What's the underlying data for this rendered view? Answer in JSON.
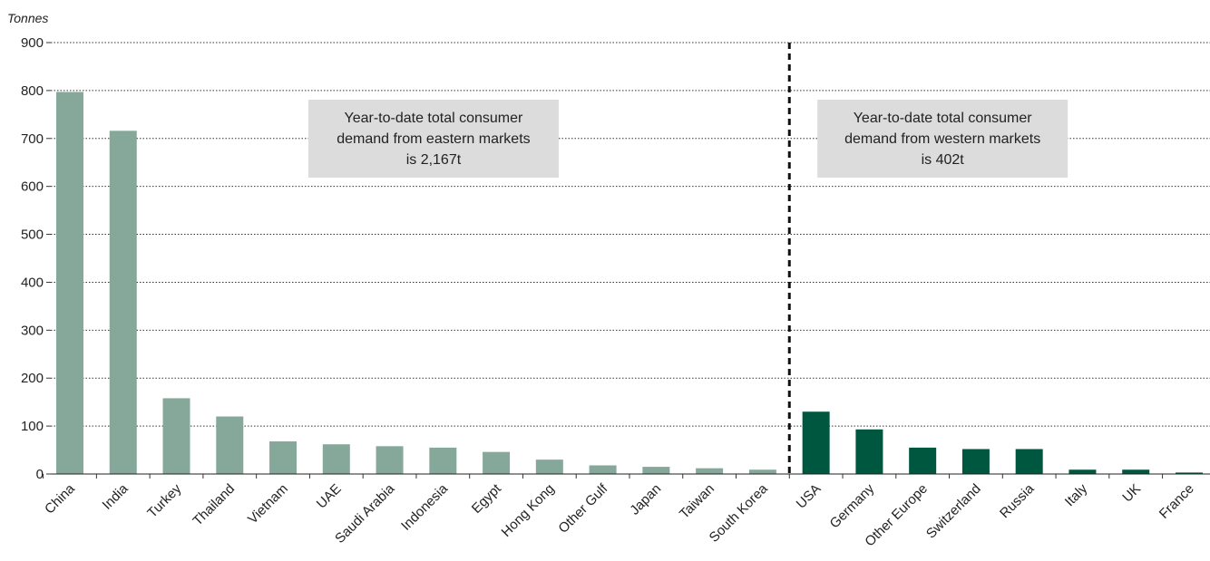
{
  "chart_data": {
    "type": "bar",
    "ylabel": "Tonnes",
    "ylim": [
      0,
      900
    ],
    "yticks": [
      0,
      100,
      200,
      300,
      400,
      500,
      600,
      700,
      800,
      900
    ],
    "grid": true,
    "categories": [
      "China",
      "India",
      "Turkey",
      "Thailand",
      "Vietnam",
      "UAE",
      "Saudi Arabia",
      "Indonesia",
      "Egypt",
      "Hong Kong",
      "Other Gulf",
      "Japan",
      "Taiwan",
      "South Korea",
      "USA",
      "Germany",
      "Other Europe",
      "Switzerland",
      "Russia",
      "Italy",
      "UK",
      "France"
    ],
    "values": [
      797,
      716,
      158,
      120,
      68,
      62,
      58,
      55,
      46,
      30,
      18,
      15,
      12,
      9,
      130,
      93,
      55,
      52,
      52,
      9,
      9,
      3
    ],
    "groups": [
      {
        "name": "eastern",
        "start": 0,
        "end": 13,
        "color": "#86a89a"
      },
      {
        "name": "western",
        "start": 14,
        "end": 21,
        "color": "#00573f"
      }
    ],
    "annotations": [
      {
        "lines": [
          "Year-to-date total consumer",
          "demand from eastern markets",
          "is 2,167t"
        ]
      },
      {
        "lines": [
          "Year-to-date total consumer",
          "demand from western markets",
          "is 402t"
        ]
      }
    ]
  }
}
